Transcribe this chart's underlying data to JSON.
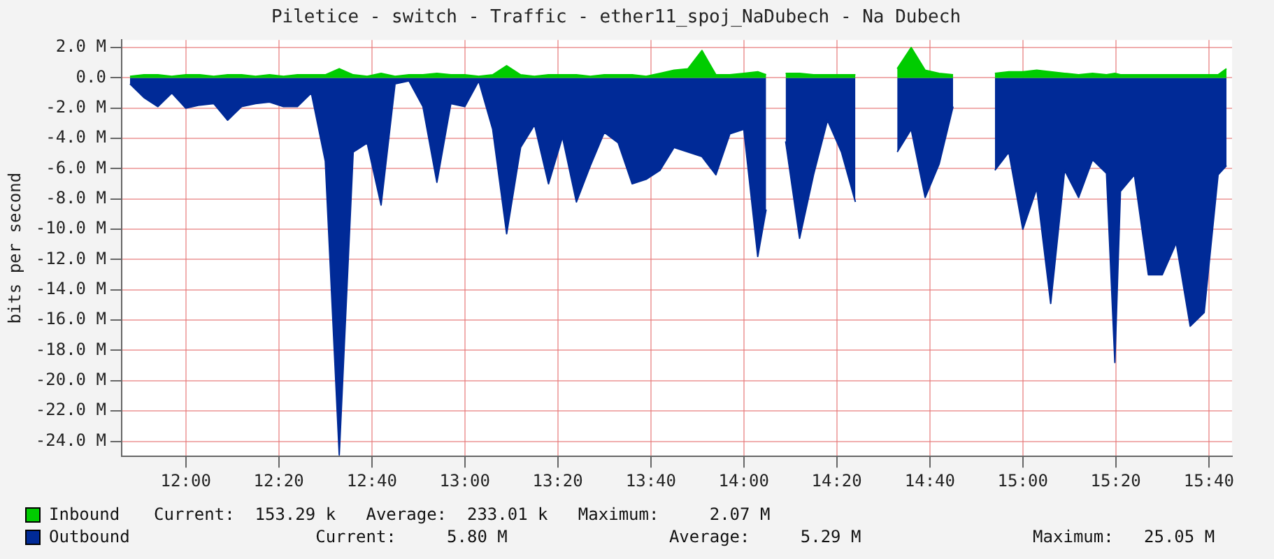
{
  "chart_data": {
    "type": "area",
    "title": "Piletice - switch - Traffic - ether11_spoj_NaDubech - Na Dubech",
    "ylabel": "bits per second",
    "x": [
      11.8,
      11.85,
      11.9,
      11.95,
      12,
      12.05,
      12.1,
      12.15,
      12.2,
      12.25,
      12.3,
      12.35,
      12.4,
      12.45,
      12.5,
      12.55,
      12.6,
      12.65,
      12.7,
      12.75,
      12.8,
      12.85,
      12.9,
      12.95,
      13,
      13.05,
      13.1,
      13.15,
      13.2,
      13.25,
      13.3,
      13.35,
      13.4,
      13.45,
      13.5,
      13.55,
      13.6,
      13.65,
      13.7,
      13.75,
      13.8,
      13.85,
      13.9,
      13.95,
      14,
      14.05,
      14.08,
      14.1,
      14.15,
      14.2,
      14.25,
      14.3,
      14.35,
      14.4,
      14.45,
      14.5,
      14.55,
      14.6,
      14.65,
      14.7,
      14.75,
      14.8,
      14.85,
      14.9,
      14.95,
      15,
      15.05,
      15.1,
      15.15,
      15.2,
      15.25,
      15.3,
      15.33,
      15.35,
      15.4,
      15.45,
      15.5,
      15.55,
      15.6,
      15.65,
      15.7,
      15.73
    ],
    "series": [
      {
        "name": "Inbound",
        "color": "#00cc00",
        "values": [
          0.1,
          0.2,
          0.2,
          0.1,
          0.2,
          0.2,
          0.1,
          0.2,
          0.2,
          0.1,
          0.2,
          0.1,
          0.2,
          0.2,
          0.2,
          0.6,
          0.2,
          0.1,
          0.3,
          0.1,
          0.2,
          0.2,
          0.3,
          0.2,
          0.2,
          0.1,
          0.2,
          0.8,
          0.2,
          0.1,
          0.2,
          0.2,
          0.2,
          0.1,
          0.2,
          0.2,
          0.2,
          0.1,
          0.3,
          0.5,
          0.6,
          1.8,
          0.2,
          0.2,
          0.3,
          0.4,
          0.2,
          null,
          0.3,
          0.3,
          0.2,
          0.2,
          0.2,
          0.2,
          null,
          null,
          0.6,
          2.0,
          0.5,
          0.3,
          0.2,
          null,
          null,
          0.3,
          0.4,
          0.4,
          0.5,
          0.4,
          0.3,
          0.2,
          0.3,
          0.2,
          0.3,
          0.2,
          0.2,
          0.2,
          0.2,
          0.2,
          0.2,
          0.2,
          0.2,
          0.6
        ]
      },
      {
        "name": "Outbound",
        "color": "#002a97",
        "values": [
          -0.4,
          -1.3,
          -1.9,
          -1.0,
          -2.0,
          -1.8,
          -1.7,
          -2.8,
          -1.9,
          -1.7,
          -1.6,
          -1.9,
          -1.9,
          -1.0,
          -5.5,
          -24.9,
          -4.9,
          -4.3,
          -8.4,
          -0.4,
          -0.2,
          -1.9,
          -6.9,
          -1.7,
          -1.9,
          -0.2,
          -3.4,
          -10.3,
          -4.6,
          -3.1,
          -7.0,
          -3.9,
          -8.2,
          -5.8,
          -3.6,
          -4.3,
          -7.0,
          -6.7,
          -6.1,
          -4.6,
          -4.9,
          -5.2,
          -6.4,
          -3.7,
          -3.4,
          -11.8,
          -8.7,
          null,
          -4.2,
          -10.6,
          -6.4,
          -2.8,
          -4.9,
          -8.2,
          null,
          null,
          -4.9,
          -3.4,
          -7.9,
          -5.7,
          -1.9,
          null,
          null,
          -6.1,
          -4.9,
          -10.0,
          -7.3,
          -14.9,
          -6.1,
          -7.9,
          -5.4,
          -6.3,
          -18.8,
          -7.5,
          -6.4,
          -13.0,
          -13.0,
          -10.9,
          -16.4,
          -15.5,
          -6.4,
          -5.8
        ]
      }
    ],
    "xlim": [
      11.77,
      15.75
    ],
    "xticks": [
      {
        "value": 12,
        "label": "12:00"
      },
      {
        "value": 12.333,
        "label": "12:20"
      },
      {
        "value": 12.667,
        "label": "12:40"
      },
      {
        "value": 13,
        "label": "13:00"
      },
      {
        "value": 13.333,
        "label": "13:20"
      },
      {
        "value": 13.667,
        "label": "13:40"
      },
      {
        "value": 14,
        "label": "14:00"
      },
      {
        "value": 14.333,
        "label": "14:20"
      },
      {
        "value": 14.667,
        "label": "14:40"
      },
      {
        "value": 15,
        "label": "15:00"
      },
      {
        "value": 15.333,
        "label": "15:20"
      },
      {
        "value": 15.667,
        "label": "15:40"
      }
    ],
    "ylim": [
      -25,
      2.5
    ],
    "yticks": [
      {
        "value": 2,
        "label": "2.0 M"
      },
      {
        "value": 0,
        "label": "0.0"
      },
      {
        "value": -2,
        "label": "-2.0 M"
      },
      {
        "value": -4,
        "label": "-4.0 M"
      },
      {
        "value": -6,
        "label": "-6.0 M"
      },
      {
        "value": -8,
        "label": "-8.0 M"
      },
      {
        "value": -10,
        "label": "-10.0 M"
      },
      {
        "value": -12,
        "label": "-12.0 M"
      },
      {
        "value": -14,
        "label": "-14.0 M"
      },
      {
        "value": -16,
        "label": "-16.0 M"
      },
      {
        "value": -18,
        "label": "-18.0 M"
      },
      {
        "value": -20,
        "label": "-20.0 M"
      },
      {
        "value": -22,
        "label": "-22.0 M"
      },
      {
        "value": -24,
        "label": "-24.0 M"
      }
    ],
    "annotations": [
      "Current:  153.29 k   Average:  233.01 k   Maximum:     2.07 M",
      "                Current:     5.80 M                Average:     5.29 M                 Maximum:   25.05 M"
    ],
    "grid": true,
    "legend": "bottom",
    "marker": "none"
  }
}
